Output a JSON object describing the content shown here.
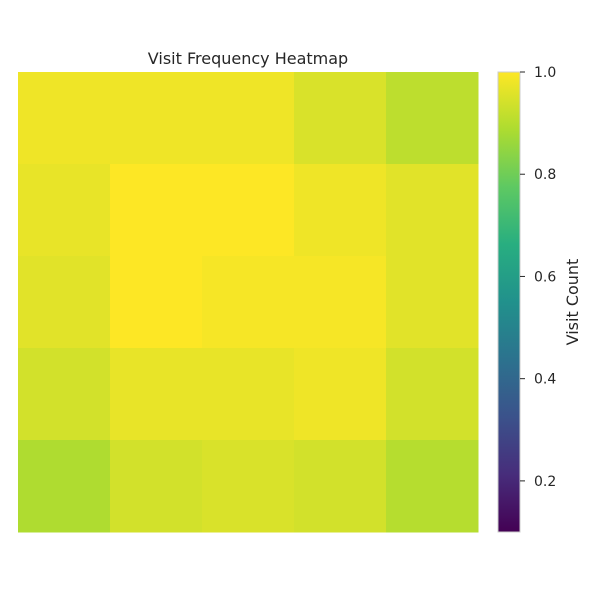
{
  "chart_data": {
    "type": "heatmap",
    "title": "Visit Frequency Heatmap",
    "xlabel": "",
    "ylabel": "",
    "rows": 5,
    "cols": 5,
    "values": [
      [
        0.98,
        0.98,
        0.98,
        0.95,
        0.91
      ],
      [
        0.97,
        1.0,
        1.0,
        0.98,
        0.96
      ],
      [
        0.96,
        1.0,
        0.99,
        0.99,
        0.96
      ],
      [
        0.94,
        0.97,
        0.97,
        0.98,
        0.94
      ],
      [
        0.89,
        0.94,
        0.95,
        0.94,
        0.9
      ]
    ],
    "colormap": "viridis",
    "colorbar": {
      "label": "Visit Count",
      "min": 0.1,
      "max": 1.0,
      "ticks": [
        "0.2",
        "0.4",
        "0.6",
        "0.8",
        "1.0"
      ],
      "tick_values": [
        0.2,
        0.4,
        0.6,
        0.8,
        1.0
      ]
    },
    "grid": false
  }
}
